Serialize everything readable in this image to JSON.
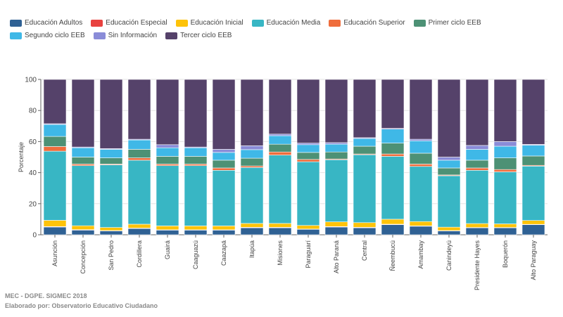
{
  "chart_data": {
    "type": "bar",
    "stacked": true,
    "ylabel": "Porcentaje",
    "xlabel": "",
    "ylim": [
      0,
      100
    ],
    "yticks": [
      0,
      20,
      40,
      60,
      80,
      100
    ],
    "legend_position": "top-left",
    "categories": [
      "Asunción",
      "Concepción",
      "San Pedro",
      "Cordillera",
      "Guairá",
      "Caaguazú",
      "Caazapá",
      "Itapúa",
      "Misiones",
      "Paraguarí",
      "Alto Paraná",
      "Central",
      "Ñeembucú",
      "Amambay",
      "Canindeyú",
      "Presidente Hayes",
      "Boquerón",
      "Alto Paraguay"
    ],
    "series": [
      {
        "name": "Educación Adultos",
        "color": "#2f6194",
        "values": [
          5,
          3,
          2.5,
          4,
          3,
          3,
          3,
          4.5,
          4.5,
          3.5,
          5,
          4.5,
          6.5,
          5.5,
          2.5,
          4.5,
          4.5,
          6.5
        ]
      },
      {
        "name": "Educación Especial",
        "color": "#e8423f",
        "values": [
          0.3,
          0.3,
          0.2,
          0.3,
          0.2,
          0.2,
          0.2,
          0.3,
          0.3,
          0.2,
          0.3,
          0.3,
          0.3,
          0.2,
          0.2,
          0.2,
          0.2,
          0.2
        ]
      },
      {
        "name": "Educación Inicial",
        "color": "#fec309",
        "values": [
          4,
          2.5,
          2,
          2.5,
          2.5,
          2.5,
          2.5,
          2.5,
          2.5,
          2.3,
          3,
          3,
          3.2,
          2.8,
          2.2,
          2.5,
          2.3,
          2.5
        ]
      },
      {
        "name": "Educación Media",
        "color": "#38b6c4",
        "values": [
          44.5,
          38.7,
          40.3,
          41.2,
          38.8,
          38.8,
          35.8,
          36,
          44,
          41,
          40,
          43.7,
          40.5,
          35.5,
          33.1,
          34.3,
          33.5,
          35
        ]
      },
      {
        "name": "Educación Superior",
        "color": "#ef6d3c",
        "values": [
          3,
          1,
          0.5,
          1.5,
          1,
          1,
          1.5,
          1,
          2,
          1.5,
          0.5,
          0.5,
          1.5,
          1.5,
          0.5,
          1.5,
          1.5,
          0.5
        ]
      },
      {
        "name": "Primer ciclo EEB",
        "color": "#4d9175",
        "values": [
          6.5,
          4.5,
          4,
          5.5,
          5,
          5,
          5,
          5,
          5,
          4.5,
          4.5,
          5,
          7,
          7,
          4.5,
          5,
          7.5,
          6
        ]
      },
      {
        "name": "Segundo ciclo EEB",
        "color": "#3fb8e7",
        "values": [
          7.7,
          6,
          5.5,
          6,
          5.5,
          5.5,
          5,
          5.5,
          5.5,
          5,
          5,
          5,
          9,
          8,
          5,
          7,
          7.5,
          7
        ]
      },
      {
        "name": "Sin Información",
        "color": "#8a8cd8",
        "values": [
          0.5,
          0.5,
          0.5,
          0.5,
          2,
          0.5,
          2,
          2.5,
          1,
          1,
          1,
          0.5,
          0.5,
          1,
          2,
          2.5,
          3,
          0.5
        ]
      },
      {
        "name": "Tercer ciclo EEB",
        "color": "#55426a",
        "values": [
          28.5,
          43.5,
          44.5,
          38.5,
          42,
          43.5,
          45,
          42.7,
          35.2,
          41,
          40.7,
          37.5,
          31.5,
          38.5,
          50,
          42.5,
          40,
          41.8
        ]
      }
    ]
  },
  "footer": {
    "source": "MEC - DGPE. SIGMEC 2018",
    "credit": "Elaborado por: Observatorio Educativo Ciudadano"
  }
}
